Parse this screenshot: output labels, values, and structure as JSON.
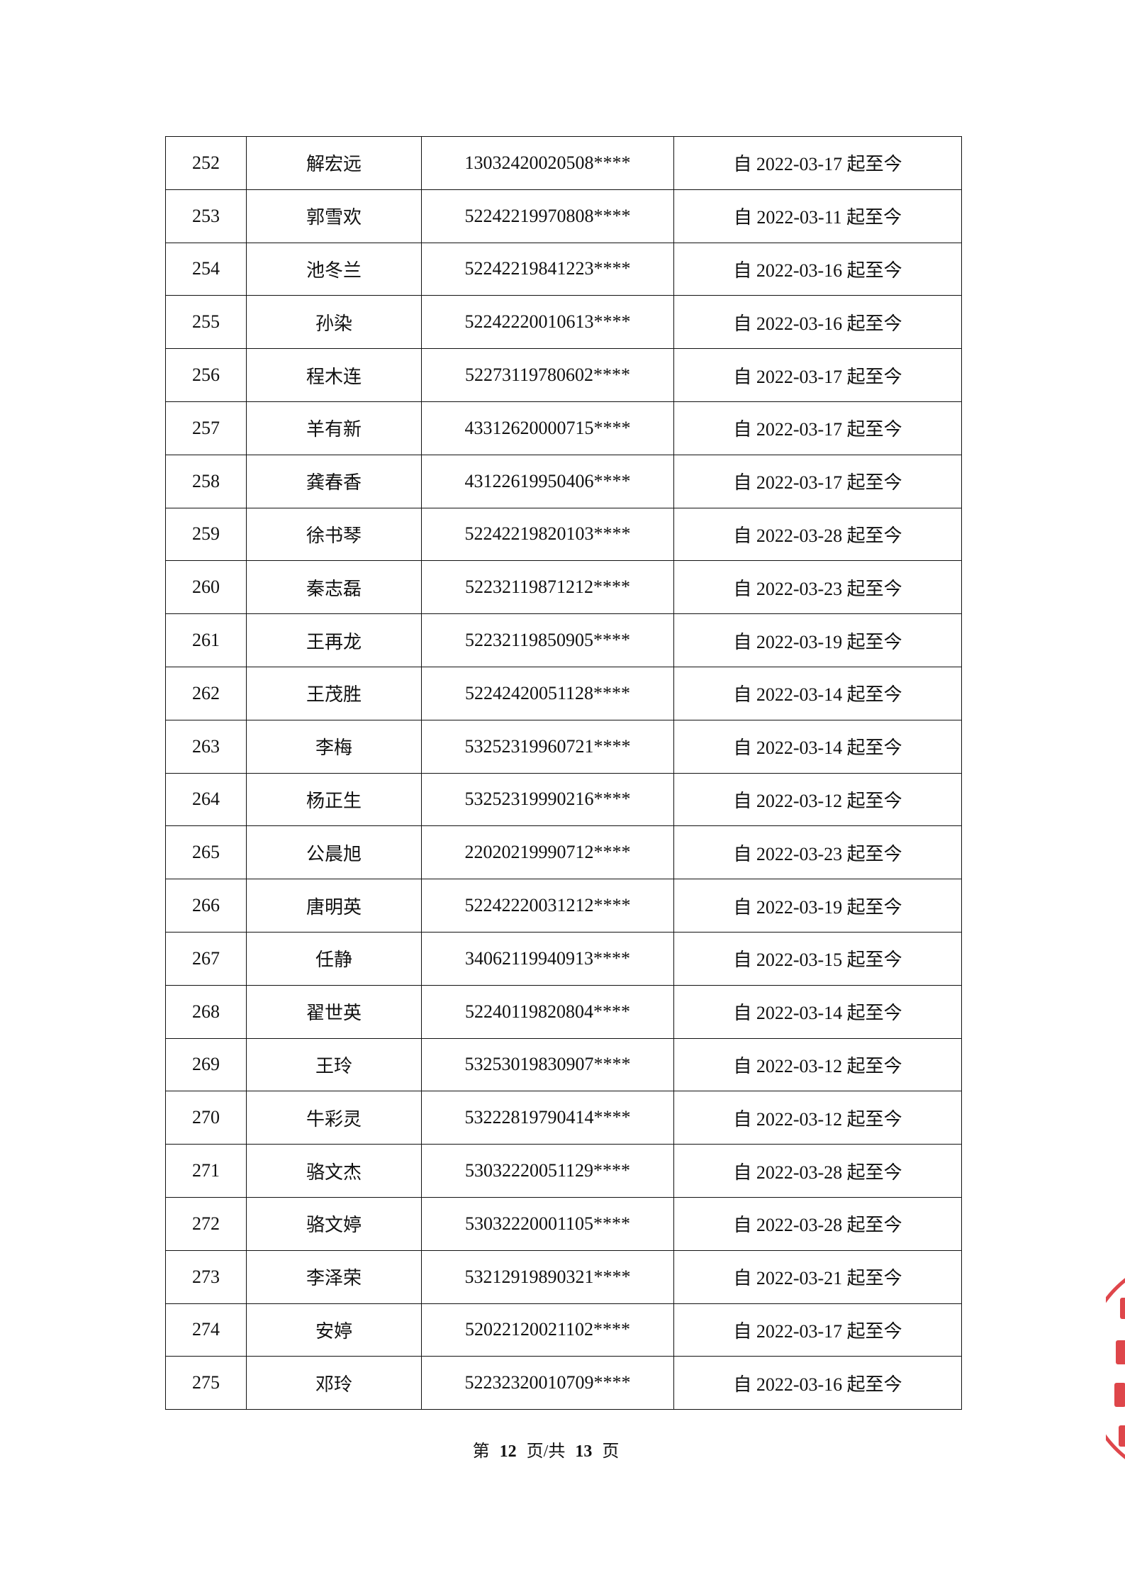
{
  "rows": [
    {
      "no": "252",
      "name": "解宏远",
      "id": "13032420020508****",
      "period": "自 2022-03-17 起至今"
    },
    {
      "no": "253",
      "name": "郭雪欢",
      "id": "52242219970808****",
      "period": "自 2022-03-11 起至今"
    },
    {
      "no": "254",
      "name": "池冬兰",
      "id": "52242219841223****",
      "period": "自 2022-03-16 起至今"
    },
    {
      "no": "255",
      "name": "孙染",
      "id": "52242220010613****",
      "period": "自 2022-03-16 起至今"
    },
    {
      "no": "256",
      "name": "程木连",
      "id": "52273119780602****",
      "period": "自 2022-03-17 起至今"
    },
    {
      "no": "257",
      "name": "羊有新",
      "id": "43312620000715****",
      "period": "自 2022-03-17 起至今"
    },
    {
      "no": "258",
      "name": "龚春香",
      "id": "43122619950406****",
      "period": "自 2022-03-17 起至今"
    },
    {
      "no": "259",
      "name": "徐书琴",
      "id": "52242219820103****",
      "period": "自 2022-03-28 起至今"
    },
    {
      "no": "260",
      "name": "秦志磊",
      "id": "52232119871212****",
      "period": "自 2022-03-23 起至今"
    },
    {
      "no": "261",
      "name": "王再龙",
      "id": "52232119850905****",
      "period": "自 2022-03-19 起至今"
    },
    {
      "no": "262",
      "name": "王茂胜",
      "id": "52242420051128****",
      "period": "自 2022-03-14 起至今"
    },
    {
      "no": "263",
      "name": "李梅",
      "id": "53252319960721****",
      "period": "自 2022-03-14 起至今"
    },
    {
      "no": "264",
      "name": "杨正生",
      "id": "53252319990216****",
      "period": "自 2022-03-12 起至今"
    },
    {
      "no": "265",
      "name": "公晨旭",
      "id": "22020219990712****",
      "period": "自 2022-03-23 起至今"
    },
    {
      "no": "266",
      "name": "唐明英",
      "id": "52242220031212****",
      "period": "自 2022-03-19 起至今"
    },
    {
      "no": "267",
      "name": "任静",
      "id": "34062119940913****",
      "period": "自 2022-03-15 起至今"
    },
    {
      "no": "268",
      "name": "翟世英",
      "id": "52240119820804****",
      "period": "自 2022-03-14 起至今"
    },
    {
      "no": "269",
      "name": "王玲",
      "id": "53253019830907****",
      "period": "自 2022-03-12 起至今"
    },
    {
      "no": "270",
      "name": "牛彩灵",
      "id": "53222819790414****",
      "period": "自 2022-03-12 起至今"
    },
    {
      "no": "271",
      "name": "骆文杰",
      "id": "53032220051129****",
      "period": "自 2022-03-28 起至今"
    },
    {
      "no": "272",
      "name": "骆文婷",
      "id": "53032220001105****",
      "period": "自 2022-03-28 起至今"
    },
    {
      "no": "273",
      "name": "李泽荣",
      "id": "53212919890321****",
      "period": "自 2022-03-21 起至今"
    },
    {
      "no": "274",
      "name": "安婷",
      "id": "52022120021102****",
      "period": "自 2022-03-17 起至今"
    },
    {
      "no": "275",
      "name": "邓玲",
      "id": "52232320010709****",
      "period": "自 2022-03-16 起至今"
    }
  ],
  "footer": {
    "prefix": "第",
    "current": "12",
    "middle": "页/共",
    "total": "13",
    "suffix": "页"
  },
  "stamp_color": "#d9262b"
}
